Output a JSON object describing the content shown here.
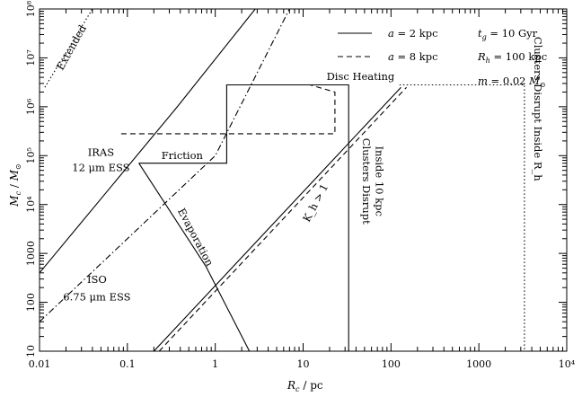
{
  "chart_data": {
    "type": "line",
    "x_scale": "log",
    "y_scale": "log",
    "xlim": [
      0.01,
      10000
    ],
    "ylim": [
      10,
      100000000
    ],
    "xlabel": "R_c / pc",
    "ylabel": "M_c / M_⊙",
    "x_ticks": [
      {
        "v": 0.01,
        "t": "0.01"
      },
      {
        "v": 0.1,
        "t": "0.1"
      },
      {
        "v": 1,
        "t": "1"
      },
      {
        "v": 10,
        "t": "10"
      },
      {
        "v": 100,
        "t": "100"
      },
      {
        "v": 1000,
        "t": "1000"
      },
      {
        "v": 10000,
        "t": "10⁴"
      }
    ],
    "y_ticks": [
      {
        "v": 10,
        "t": "10"
      },
      {
        "v": 100,
        "t": "100"
      },
      {
        "v": 1000,
        "t": "1000"
      },
      {
        "v": 10000,
        "t": "10⁴"
      },
      {
        "v": 100000,
        "t": "10⁵"
      },
      {
        "v": 1000000,
        "t": "10⁶"
      },
      {
        "v": 10000000,
        "t": "10⁷"
      },
      {
        "v": 100000000,
        "t": "10⁸"
      }
    ],
    "legend": [
      {
        "label": "a = 2 kpc",
        "style": "solid"
      },
      {
        "label": "a = 8 kpc",
        "style": "dashed"
      }
    ],
    "parameters": [
      "t_g = 10 Gyr",
      "R_h = 100 kpc",
      "m = 0.02 M_⊙"
    ],
    "series": [
      {
        "style": "solid",
        "points": [
          [
            0.01,
            400
          ],
          [
            0.37,
            1000000
          ],
          [
            2.85,
            100000000
          ]
        ]
      },
      {
        "style": "dashdot",
        "points": [
          [
            0.01,
            40
          ],
          [
            1.0,
            100000
          ],
          [
            7.0,
            100000000
          ]
        ]
      },
      {
        "style": "dotted",
        "points": [
          [
            0.0115,
            2500000
          ],
          [
            0.04,
            100000000
          ]
        ]
      },
      {
        "style": "solid",
        "points": [
          [
            0.135,
            70000
          ],
          [
            1.35,
            70000
          ],
          [
            1.35,
            2800000
          ],
          [
            33,
            2800000
          ],
          [
            33,
            10
          ]
        ]
      },
      {
        "style": "dashed",
        "points": [
          [
            0.085,
            280000
          ],
          [
            23,
            280000
          ],
          [
            23,
            2000000
          ],
          [
            12,
            2800000
          ]
        ]
      },
      {
        "style": "solid",
        "points": [
          [
            0.135,
            70000
          ],
          [
            0.78,
            550
          ],
          [
            2.45,
            10
          ]
        ]
      },
      {
        "style": "solid",
        "points": [
          [
            0.2,
            10
          ],
          [
            130,
            2500000
          ]
        ]
      },
      {
        "style": "dashed",
        "points": [
          [
            0.23,
            10
          ],
          [
            150,
            2500000
          ]
        ]
      },
      {
        "style": "dotted",
        "points": [
          [
            125,
            2800000
          ],
          [
            3300,
            2800000
          ],
          [
            3300,
            10
          ]
        ]
      }
    ],
    "annotations": [
      {
        "text": "Extended",
        "x": 0.025,
        "y": 15000000,
        "rotate": -61
      },
      {
        "text": "Disc Heating",
        "x": 45,
        "y": 3500000,
        "rotate": 0
      },
      {
        "text": "IRAS",
        "x": 0.05,
        "y": 100000,
        "rotate": 0
      },
      {
        "text": "12 μm ESS",
        "x": 0.05,
        "y": 48000,
        "rotate": 0
      },
      {
        "text": "Friction",
        "x": 0.42,
        "y": 85000,
        "rotate": 0
      },
      {
        "text": "Evaporation",
        "x": 0.55,
        "y": 2000,
        "rotate": 62
      },
      {
        "text": "ISO",
        "x": 0.045,
        "y": 250,
        "rotate": 0
      },
      {
        "text": "6.75 μm ESS",
        "x": 0.045,
        "y": 110,
        "rotate": 0
      },
      {
        "text": "K_h > 1",
        "x": 15,
        "y": 10000,
        "rotate": -62
      },
      {
        "text": "Clusters Disrupt",
        "x": 48,
        "y": 30000,
        "rotate": 90
      },
      {
        "text": "Inside 10 kpc",
        "x": 67,
        "y": 30000,
        "rotate": 90
      },
      {
        "text": "Clusters Disrupt Inside R_h",
        "x": 4300,
        "y": 900000,
        "rotate": 90
      }
    ]
  }
}
